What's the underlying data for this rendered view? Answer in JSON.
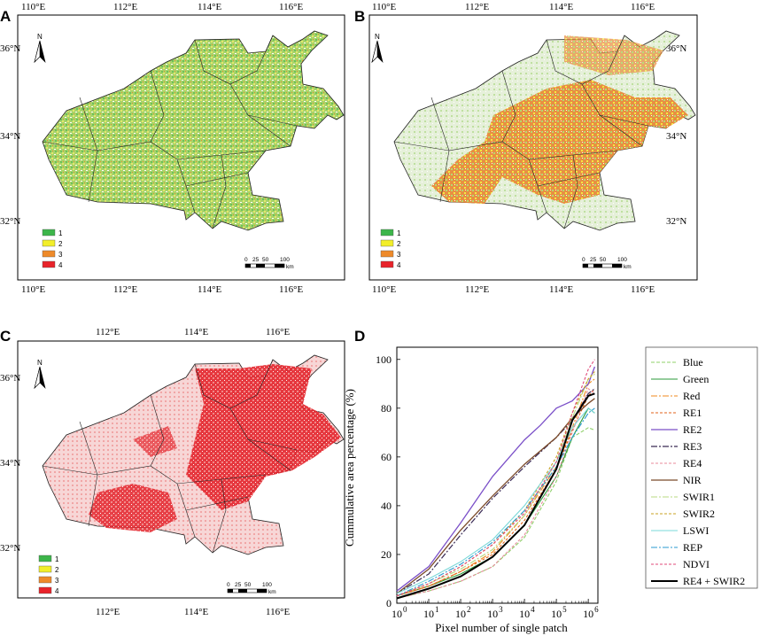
{
  "panels": {
    "A": {
      "letter": "A",
      "lon_top": [
        "110°E",
        "112°E",
        "114°E",
        "116°E"
      ],
      "lon_bottom": [
        "110°E",
        "112°E",
        "114°E",
        "116°E"
      ],
      "lat": [
        "36°N",
        "34°N",
        "32°N"
      ]
    },
    "B": {
      "letter": "B",
      "lon_top": [
        "110°E",
        "112°E",
        "114°E",
        "116°E"
      ],
      "lon_bottom": [
        "110°E",
        "112°E",
        "114°E",
        "116°E"
      ],
      "lat": [
        "36°N",
        "34°N",
        "32°N"
      ]
    },
    "C": {
      "letter": "C",
      "lon_top": [
        "112°E",
        "114°E",
        "116°E"
      ],
      "lon_bottom": [
        "112°E",
        "114°E",
        "116°E"
      ],
      "lat": [
        "36°N",
        "34°N",
        "32°N"
      ]
    },
    "D": {
      "letter": "D"
    }
  },
  "map_legend": {
    "classes": [
      "1",
      "2",
      "3",
      "4"
    ],
    "colors": [
      "#3cb54a",
      "#f2ee2a",
      "#ee8a2a",
      "#e8232a"
    ]
  },
  "scale_bar": {
    "ticks": [
      "0",
      "25",
      "50",
      "100"
    ],
    "unit": "km"
  },
  "north_label": "N",
  "chart_data": {
    "type": "line",
    "title": "",
    "xlabel": "Pixel number of single patch",
    "ylabel": "Cummulative area percentage (%)",
    "xscale": "log",
    "xlim": [
      1,
      2000000
    ],
    "ylim": [
      0,
      105
    ],
    "x_ticks": [
      {
        "exp": 0,
        "label": "0"
      },
      {
        "exp": 1,
        "label": "1"
      },
      {
        "exp": 2,
        "label": "2"
      },
      {
        "exp": 3,
        "label": "3"
      },
      {
        "exp": 4,
        "label": "4"
      },
      {
        "exp": 5,
        "label": "5"
      },
      {
        "exp": 6,
        "label": "6"
      }
    ],
    "x_tick_base": "10",
    "y_ticks": [
      "0",
      "20",
      "40",
      "60",
      "80",
      "100"
    ],
    "series": [
      {
        "name": "Blue",
        "color": "#8fd06a",
        "dash": "4,2",
        "width": 1.1,
        "log10x": [
          0,
          1,
          2,
          3,
          4,
          5,
          5.5,
          6,
          6.2
        ],
        "y": [
          2,
          5,
          9,
          15,
          27,
          50,
          68,
          72,
          71
        ]
      },
      {
        "name": "Green",
        "color": "#2a9a3a",
        "dash": "",
        "width": 1.1,
        "log10x": [
          0,
          1,
          2,
          3,
          4,
          5,
          5.5,
          6,
          6.2
        ],
        "y": [
          3,
          7,
          12,
          19,
          32,
          52,
          68,
          80,
          78
        ]
      },
      {
        "name": "Red",
        "color": "#f08a1c",
        "dash": "7,2,2,2",
        "width": 1.1,
        "log10x": [
          0,
          1,
          2,
          3,
          4,
          5,
          5.5,
          6,
          6.2
        ],
        "y": [
          3,
          7,
          13,
          21,
          36,
          56,
          72,
          90,
          92
        ]
      },
      {
        "name": "RE1",
        "color": "#e0601a",
        "dash": "3,2",
        "width": 1.1,
        "log10x": [
          0,
          1,
          2,
          3,
          4,
          5,
          5.5,
          6,
          6.2
        ],
        "y": [
          3,
          7,
          13,
          20,
          34,
          55,
          71,
          85,
          88
        ]
      },
      {
        "name": "RE2",
        "color": "#7a4fc8",
        "dash": "",
        "width": 1.3,
        "log10x": [
          0,
          1,
          2,
          3,
          4,
          4.5,
          5,
          5.5,
          6,
          6.2
        ],
        "y": [
          5,
          15,
          33,
          52,
          67,
          73,
          80,
          83,
          90,
          97
        ]
      },
      {
        "name": "RE3",
        "color": "#3a2a55",
        "dash": "7,2,2,2",
        "width": 1.2,
        "log10x": [
          0,
          1,
          2,
          3,
          4,
          5,
          5.5,
          6,
          6.2
        ],
        "y": [
          4,
          12,
          28,
          43,
          56,
          68,
          75,
          86,
          88
        ]
      },
      {
        "name": "RE4",
        "color": "#e88a9a",
        "dash": "3,2",
        "width": 1.1,
        "log10x": [
          0,
          1,
          2,
          3,
          4,
          5,
          5.5,
          6,
          6.2
        ],
        "y": [
          2,
          5,
          9,
          15,
          28,
          52,
          70,
          88,
          86
        ]
      },
      {
        "name": "NIR",
        "color": "#7a4a2a",
        "dash": "",
        "width": 1.3,
        "log10x": [
          0,
          1,
          2,
          3,
          4,
          5,
          5.5,
          6,
          6.2
        ],
        "y": [
          4,
          14,
          30,
          44,
          57,
          68,
          76,
          82,
          84
        ]
      },
      {
        "name": "SWIR1",
        "color": "#b8d880",
        "dash": "7,2,2,2",
        "width": 1.1,
        "log10x": [
          0,
          1,
          2,
          3,
          4,
          5,
          5.5,
          6,
          6.2
        ],
        "y": [
          3,
          8,
          14,
          22,
          36,
          58,
          76,
          92,
          94
        ]
      },
      {
        "name": "SWIR2",
        "color": "#c8a020",
        "dash": "3,2",
        "width": 1.1,
        "log10x": [
          0,
          1,
          2,
          3,
          4,
          5,
          5.5,
          6,
          6.2
        ],
        "y": [
          3,
          8,
          15,
          24,
          38,
          60,
          78,
          92,
          95
        ]
      },
      {
        "name": "LSWI",
        "color": "#7ad8d8",
        "dash": "",
        "width": 1.1,
        "log10x": [
          0,
          1,
          2,
          3,
          4,
          5,
          5.5,
          6,
          6.2
        ],
        "y": [
          4,
          10,
          17,
          26,
          40,
          58,
          72,
          80,
          78
        ]
      },
      {
        "name": "REP",
        "color": "#2a9ad0",
        "dash": "7,2,2,2",
        "width": 1.1,
        "log10x": [
          0,
          1,
          2,
          3,
          4,
          5,
          5.5,
          6,
          6.2
        ],
        "y": [
          3,
          9,
          16,
          25,
          38,
          56,
          68,
          78,
          80
        ]
      },
      {
        "name": "NDVI",
        "color": "#e04878",
        "dash": "3,2",
        "width": 1.1,
        "log10x": [
          0,
          1,
          2,
          3,
          4,
          5,
          5.5,
          6,
          6.2
        ],
        "y": [
          3,
          8,
          15,
          24,
          37,
          58,
          78,
          96,
          100
        ]
      },
      {
        "name": "RE4 + SWIR2",
        "color": "#000000",
        "dash": "",
        "width": 2.0,
        "log10x": [
          0,
          1,
          2,
          3,
          4,
          5,
          5.5,
          6,
          6.2
        ],
        "y": [
          2,
          6,
          11,
          19,
          32,
          55,
          75,
          85,
          86
        ]
      }
    ]
  }
}
